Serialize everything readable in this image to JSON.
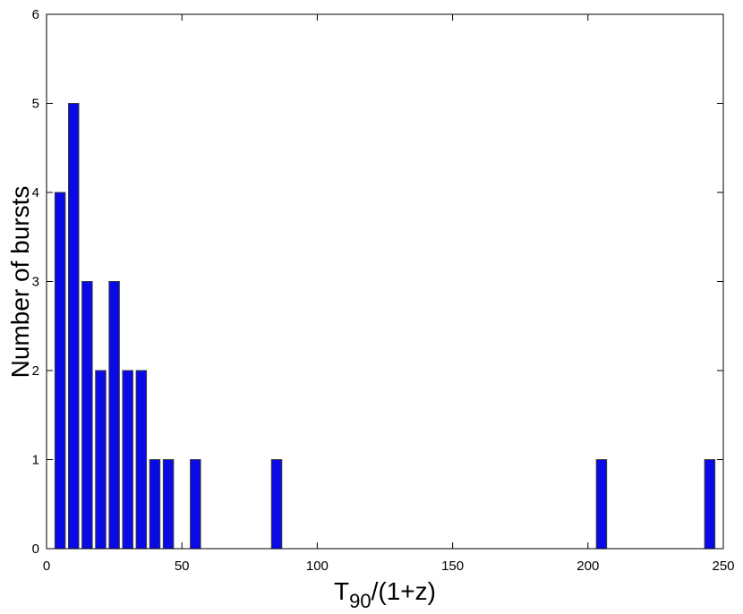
{
  "chart_data": {
    "type": "bar",
    "xlabel_main": "T",
    "xlabel_sub": "90",
    "xlabel_rest": "/(1+z)",
    "ylabel": "Number of bursts",
    "xlim": [
      0,
      250
    ],
    "ylim": [
      0,
      6
    ],
    "xticks": [
      0,
      50,
      100,
      150,
      200,
      250
    ],
    "yticks": [
      0,
      1,
      2,
      3,
      4,
      5,
      6
    ],
    "bar_width": 3.8,
    "grid": false,
    "colors": {
      "bar_fill": "#0a0ae6",
      "bar_stroke": "#3a3a3a"
    },
    "bars": [
      {
        "x": 5,
        "value": 4
      },
      {
        "x": 10,
        "value": 5
      },
      {
        "x": 15,
        "value": 3
      },
      {
        "x": 20,
        "value": 2
      },
      {
        "x": 25,
        "value": 3
      },
      {
        "x": 30,
        "value": 2
      },
      {
        "x": 35,
        "value": 2
      },
      {
        "x": 40,
        "value": 1
      },
      {
        "x": 45,
        "value": 1
      },
      {
        "x": 55,
        "value": 1
      },
      {
        "x": 85,
        "value": 1
      },
      {
        "x": 205,
        "value": 1
      },
      {
        "x": 245,
        "value": 1
      }
    ]
  }
}
